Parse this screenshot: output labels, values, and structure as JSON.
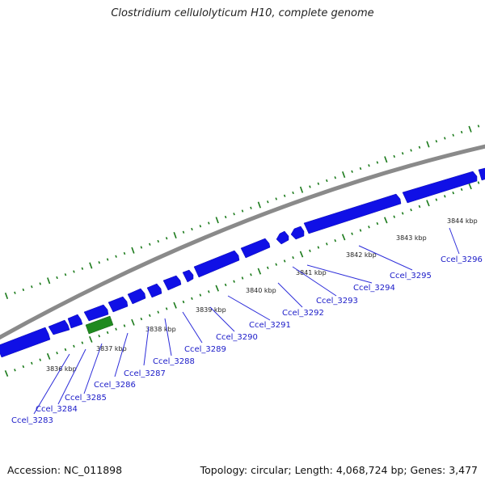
{
  "title": "Clostridium cellulolyticum H10, complete genome",
  "footer": {
    "accession": "Accession: NC_011898",
    "summary": "Topology: circular; Length: 4,068,724 bp; Genes: 3,477"
  },
  "colors": {
    "backbone": "#7f7f7f",
    "gene_blue": "#1010e6",
    "gene_green": "#1f8a1f",
    "tick_green": "#1a7a1a",
    "label_blue": "#1a1ac8"
  },
  "scale_labels": [
    "3836 kbp",
    "3837 kbp",
    "3838 kbp",
    "3839 kbp",
    "3840 kbp",
    "3841 kbp",
    "3842 kbp",
    "3843 kbp",
    "3844 kbp"
  ],
  "gene_labels": [
    "Ccel_3283",
    "Ccel_3284",
    "Ccel_3285",
    "Ccel_3286",
    "Ccel_3287",
    "Ccel_3288",
    "Ccel_3289",
    "Ccel_3290",
    "Ccel_3291",
    "Ccel_3292",
    "Ccel_3293",
    "Ccel_3294",
    "Ccel_3295",
    "Ccel_3296"
  ]
}
